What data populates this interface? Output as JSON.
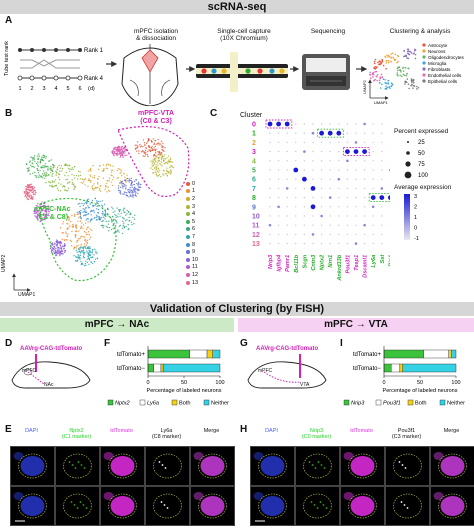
{
  "top_banner": "scRNA-seq",
  "panel_a": {
    "label": "A",
    "tube_axis": "Tube test rank",
    "rank1": "Rank 1",
    "rank4": "Rank 4",
    "days": [
      "1",
      "2",
      "3",
      "4",
      "5",
      "6"
    ],
    "days_unit": "(d)",
    "step1": "mPFC isolation\n& dissociation",
    "step2": "Single-cell capture\n(10X Chromium)",
    "step3": "Sequencing",
    "step4": "Clustering & analysis",
    "legend": [
      "Astrocyte",
      "Neurons",
      "Oligodendrocytes",
      "Microglia",
      "Fibroblasts",
      "Endothelial cells",
      "Epithelial cells"
    ],
    "legend_colors": [
      "#e8553a",
      "#f2a33a",
      "#6bb36b",
      "#3fa6d6",
      "#8a6fc2",
      "#e06fb5",
      "#7a7a7a"
    ],
    "umap1": "UMAP1",
    "umap2": "UMAP2"
  },
  "panel_b": {
    "label": "B",
    "vta_label": "mPFC-VTA\n(C0 & C3)",
    "nac_label": "mPFC-NAc\n(C1 & C8)",
    "umap1": "UMAP1",
    "umap2": "UMAP2",
    "clusters": [
      "0",
      "1",
      "2",
      "3",
      "4",
      "5",
      "6",
      "7",
      "8",
      "9",
      "10",
      "11",
      "12",
      "13"
    ],
    "cluster_colors": [
      "#e45c3a",
      "#f08a2e",
      "#d9a52a",
      "#b7b32e",
      "#86b83a",
      "#3fae53",
      "#34a98a",
      "#2fa7b3",
      "#3b8fd2",
      "#5f70d6",
      "#8b5ed6",
      "#b65ad0",
      "#d95cb2",
      "#e5668a"
    ]
  },
  "panel_c": {
    "label": "C",
    "cluster_title": "Cluster",
    "genes": [
      "Nrip3",
      "Igfbp4",
      "Pamr1",
      "Bcl11b",
      "Scgn",
      "Cntn3",
      "Nptx2",
      "Nrn1",
      "Ankrd33b",
      "Pou3f1",
      "Tesp1",
      "Dscaml1",
      "Ly6a",
      "Sst",
      "Bin1"
    ],
    "gene_colors": [
      "#d11fb8",
      "#d11fb8",
      "#d11fb8",
      "#2a2",
      "#2a2",
      "#2a2",
      "#2a2",
      "#2a2",
      "#2a2",
      "#d11fb8",
      "#d11fb8",
      "#d11fb8",
      "#2a2",
      "#2a2",
      "#2a2"
    ],
    "percent_title": "Percent expressed",
    "percent_ticks": [
      "25",
      "50",
      "75",
      "100"
    ],
    "avg_title": "Average expression",
    "avg_ticks": [
      "3",
      "2",
      "1",
      "0",
      "-1"
    ]
  },
  "mid_banner": "Validation of Clustering (by FISH)",
  "nac_band": "mPFC → NAc",
  "vta_band": "mPFC → VTA",
  "panel_d": {
    "label": "D",
    "virus": "AAVrg-CAG-tdTomato",
    "region1": "mPFC",
    "region2": "NAc"
  },
  "panel_g": {
    "label": "G",
    "virus": "AAVrg-CAG-tdTomato",
    "region1": "mPFC",
    "region2": "VTA"
  },
  "panel_f": {
    "label": "F",
    "rows": [
      "tdTomato+",
      "tdTomato−"
    ],
    "xlabel": "Percentage of labeled neurons",
    "ticks": [
      "0",
      "50",
      "100"
    ],
    "legend": [
      "Nptx2",
      "Ly6a",
      "Both",
      "Neither"
    ],
    "colors": [
      "#3bc43b",
      "#ffffff",
      "#f2d21b",
      "#35d2e6"
    ]
  },
  "panel_i": {
    "label": "I",
    "rows": [
      "tdTomato+",
      "tdTomato−"
    ],
    "xlabel": "Percentage of labeled neurons",
    "ticks": [
      "0",
      "50",
      "100"
    ],
    "legend": [
      "Nrip3",
      "Pou3f1",
      "Both",
      "Neither"
    ],
    "colors": [
      "#3bc43b",
      "#ffffff",
      "#f2d21b",
      "#35d2e6"
    ]
  },
  "panel_e": {
    "label": "E",
    "cols": [
      "DAPI",
      "Nptx2\n(C1 marker)",
      "tdTomato",
      "Ly6a\n(C8 marker)",
      "Merge"
    ],
    "col_colors": [
      "#4a5cff",
      "#2bd12b",
      "#e033e0",
      "#111",
      "#111"
    ]
  },
  "panel_h": {
    "label": "H",
    "cols": [
      "DAPI",
      "Nrip3\n(C0 marker)",
      "tdTomato",
      "Pou3f1\n(C3 marker)",
      "Merge"
    ],
    "col_colors": [
      "#4a5cff",
      "#2bd12b",
      "#e033e0",
      "#111",
      "#111"
    ]
  },
  "chart_data": [
    {
      "type": "bar",
      "title": "",
      "categories": [
        "tdTomato+",
        "tdTomato−"
      ],
      "series": [
        {
          "name": "Nptx2",
          "values": [
            58,
            8
          ]
        },
        {
          "name": "Ly6a",
          "values": [
            24,
            10
          ]
        },
        {
          "name": "Both",
          "values": [
            8,
            3
          ]
        },
        {
          "name": "Neither",
          "values": [
            10,
            79
          ]
        }
      ],
      "xlabel": "Percentage of labeled neurons",
      "xlim": [
        0,
        100
      ],
      "stacked": true,
      "orientation": "horizontal"
    },
    {
      "type": "bar",
      "title": "",
      "categories": [
        "tdTomato+",
        "tdTomato−"
      ],
      "series": [
        {
          "name": "Nrip3",
          "values": [
            55,
            10
          ]
        },
        {
          "name": "Pou3f1",
          "values": [
            35,
            12
          ]
        },
        {
          "name": "Both",
          "values": [
            4,
            4
          ]
        },
        {
          "name": "Neither",
          "values": [
            6,
            74
          ]
        }
      ],
      "xlabel": "Percentage of labeled neurons",
      "xlim": [
        0,
        100
      ],
      "stacked": true,
      "orientation": "horizontal"
    }
  ]
}
